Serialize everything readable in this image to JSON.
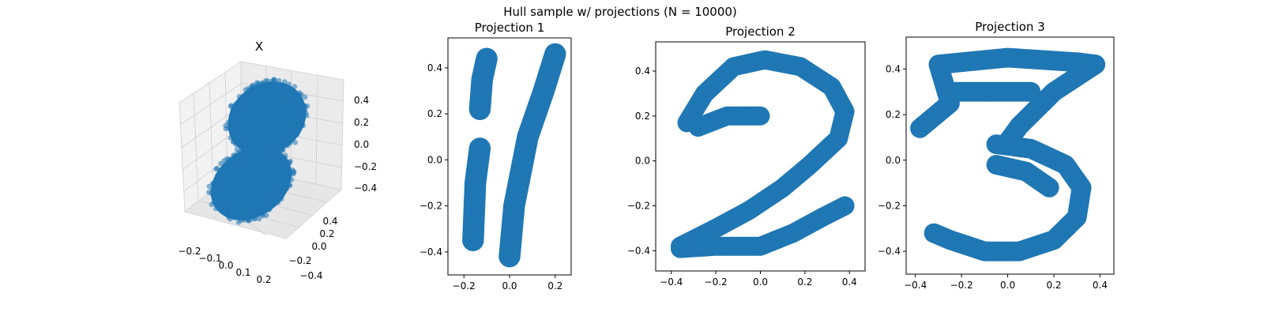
{
  "figure": {
    "suptitle": "Hull sample w/ projections (N = 10000)",
    "point_color": "#1f77b4"
  },
  "chart_data": [
    {
      "type": "scatter3d",
      "title": "X",
      "x_ticks": [
        "−0.2",
        "−0.1",
        "0.0",
        "0.1",
        "0.2"
      ],
      "y_ticks": [
        "−0.4",
        "−0.2",
        "0.0",
        "0.2",
        "0.4"
      ],
      "z_ticks": [
        "−0.4",
        "−0.2",
        "0.0",
        "0.2",
        "0.4"
      ],
      "grid": true,
      "points": "10000 sampled points forming a slanted slab"
    },
    {
      "type": "scatter",
      "title": "Projection 1",
      "shape": "digit 1",
      "xlim": [
        -0.27,
        0.27
      ],
      "ylim": [
        -0.5,
        0.53
      ],
      "x_ticks": [
        -0.2,
        0.0,
        0.2
      ],
      "y_ticks": [
        -0.4,
        -0.2,
        0.0,
        0.2,
        0.4
      ],
      "x_tick_labels": [
        "−0.2",
        "0.0",
        "0.2"
      ],
      "y_tick_labels": [
        "−0.4",
        "−0.2",
        "0.0",
        "0.2",
        "0.4"
      ]
    },
    {
      "type": "scatter",
      "title": "Projection 2",
      "shape": "digit 2",
      "xlim": [
        -0.47,
        0.47
      ],
      "ylim": [
        -0.49,
        0.53
      ],
      "x_ticks": [
        -0.4,
        -0.2,
        0.0,
        0.2,
        0.4
      ],
      "y_ticks": [
        -0.4,
        -0.2,
        0.0,
        0.2,
        0.4
      ],
      "x_tick_labels": [
        "−0.4",
        "−0.2",
        "0.0",
        "0.2",
        "0.4"
      ],
      "y_tick_labels": [
        "−0.4",
        "−0.2",
        "0.0",
        "0.2",
        "0.4"
      ]
    },
    {
      "type": "scatter",
      "title": "Projection 3",
      "shape": "digit 3",
      "xlim": [
        -0.44,
        0.46
      ],
      "ylim": [
        -0.5,
        0.54
      ],
      "x_ticks": [
        -0.4,
        -0.2,
        0.0,
        0.2,
        0.4
      ],
      "y_ticks": [
        -0.4,
        -0.2,
        0.0,
        0.2,
        0.4
      ],
      "x_tick_labels": [
        "−0.4",
        "−0.2",
        "0.0",
        "0.2",
        "0.4"
      ],
      "y_tick_labels": [
        "−0.4",
        "−0.2",
        "0.0",
        "0.2",
        "0.4"
      ]
    }
  ]
}
